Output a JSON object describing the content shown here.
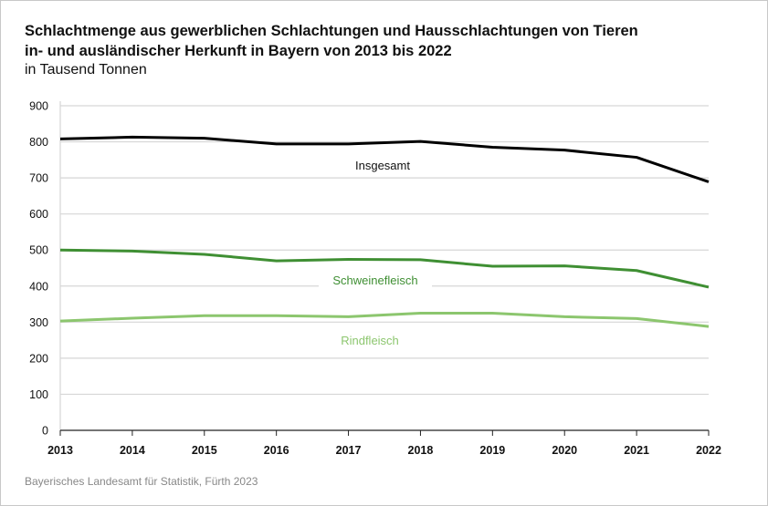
{
  "chart_data": {
    "type": "line",
    "title_line1": "Schlachtmenge aus gewerblichen Schlachtungen und Hausschlachtungen von Tieren",
    "title_line2": "in- und ausländischer Herkunft in Bayern von 2013 bis 2022",
    "subtitle": "in Tausend Tonnen",
    "source": "Bayerisches Landesamt für Statistik, Fürth 2023",
    "x": [
      "2013",
      "2014",
      "2015",
      "2016",
      "2017",
      "2018",
      "2019",
      "2020",
      "2021",
      "2022"
    ],
    "ylim": [
      0,
      900
    ],
    "yticks": [
      "0",
      "100",
      "200",
      "300",
      "400",
      "500",
      "600",
      "700",
      "800",
      "900"
    ],
    "grid": true,
    "series": [
      {
        "name": "Insgesamt",
        "color": "#000000",
        "values": [
          808,
          813,
          810,
          794,
          794,
          801,
          785,
          777,
          757,
          689
        ]
      },
      {
        "name": "Schweinefleisch",
        "color": "#3f8f33",
        "values": [
          500,
          497,
          488,
          470,
          474,
          473,
          455,
          456,
          443,
          397
        ]
      },
      {
        "name": "Rindfleisch",
        "color": "#8cc66e",
        "values": [
          303,
          311,
          318,
          318,
          315,
          325,
          325,
          315,
          310,
          288
        ]
      }
    ]
  }
}
